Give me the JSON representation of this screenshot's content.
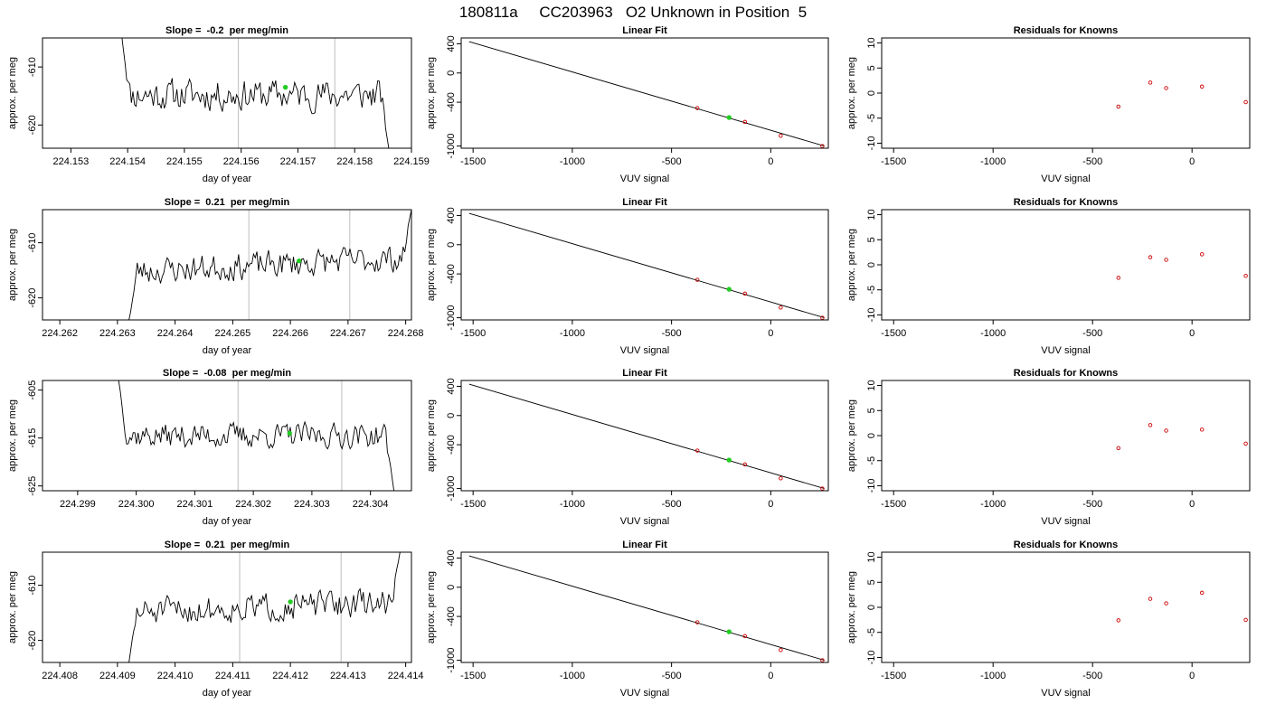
{
  "page_title": "180811a     CC203963   O2 Unknown in Position  5",
  "colors": {
    "trace": "#000000",
    "marker_green": "#22cc22",
    "known_points": "#cc0000",
    "vertical_lines": "#c8c8c8"
  },
  "chart_data": [
    {
      "type": "line",
      "panel": "time-series",
      "row": 0,
      "title": "Slope =  -0.2  per meg/min",
      "xlabel": "day of year",
      "ylabel": "approx. per meg",
      "x_ticks": [
        "224.153",
        "224.154",
        "224.155",
        "224.156",
        "224.157",
        "224.158",
        "224.159"
      ],
      "xlim": [
        224.1525,
        224.159
      ],
      "y_ticks": [
        -620,
        -610
      ],
      "ylim": [
        -624,
        -605
      ],
      "trace": {
        "x_start": 224.1539,
        "x_end": 224.1586,
        "mean": -614.8,
        "noise": 2.4,
        "start_value": -605,
        "end_value": -624,
        "seed": 11
      },
      "vlines": [
        224.15595,
        224.15765
      ],
      "marker": {
        "x": 224.15678,
        "y": -613.5
      },
      "grid": false
    },
    {
      "type": "line",
      "panel": "linear-fit",
      "row": 0,
      "title": "Linear Fit",
      "xlabel": "VUV signal",
      "ylabel": "approx. per meg",
      "x_ticks": [
        -1500,
        -1000,
        -500,
        0
      ],
      "xlim": [
        -1560,
        290
      ],
      "y_ticks": [
        400,
        0,
        -400,
        -1000
      ],
      "ylim": [
        -1030,
        480
      ],
      "line": [
        [
          -1520,
          430
        ],
        [
          270,
          -1000
        ]
      ],
      "points": [
        [
          -370,
          -480
        ],
        [
          -130,
          -670
        ],
        [
          50,
          -860
        ],
        [
          260,
          -1000
        ]
      ],
      "marker": {
        "x": -210,
        "y": -610
      }
    },
    {
      "type": "scatter",
      "panel": "residuals",
      "row": 0,
      "title": "Residuals for Knowns",
      "xlabel": "VUV signal",
      "ylabel": "approx. per meg",
      "x_ticks": [
        -1500,
        -1000,
        -500,
        0
      ],
      "xlim": [
        -1560,
        290
      ],
      "y_ticks": [
        10,
        5,
        0,
        -5,
        -10
      ],
      "ylim": [
        -11,
        11
      ],
      "points": [
        [
          -370,
          -2.7
        ],
        [
          -210,
          2.1
        ],
        [
          -130,
          1.0
        ],
        [
          50,
          1.3
        ],
        [
          270,
          -1.8
        ]
      ]
    },
    {
      "type": "line",
      "panel": "time-series",
      "row": 1,
      "title": "Slope =  0.21  per meg/min",
      "xlabel": "day of year",
      "ylabel": "approx. per meg",
      "x_ticks": [
        "224.262",
        "224.263",
        "224.264",
        "224.265",
        "224.266",
        "224.267",
        "224.268"
      ],
      "xlim": [
        224.2617,
        224.2681
      ],
      "y_ticks": [
        -620,
        -610
      ],
      "ylim": [
        -624,
        -604
      ],
      "trace": {
        "x_start": 224.2632,
        "x_end": 224.2681,
        "mean": -614.0,
        "noise": 2.2,
        "start_value": -624,
        "end_value": -604,
        "trend": 2.5,
        "seed": 23
      },
      "vlines": [
        224.26528,
        224.26703
      ],
      "marker": {
        "x": 224.26615,
        "y": -613.3
      },
      "grid": false
    },
    {
      "type": "line",
      "panel": "linear-fit",
      "row": 1,
      "title": "Linear Fit",
      "xlabel": "VUV signal",
      "ylabel": "approx. per meg",
      "x_ticks": [
        -1500,
        -1000,
        -500,
        0
      ],
      "xlim": [
        -1560,
        290
      ],
      "y_ticks": [
        400,
        0,
        -400,
        -1000
      ],
      "ylim": [
        -1030,
        480
      ],
      "line": [
        [
          -1520,
          430
        ],
        [
          270,
          -1000
        ]
      ],
      "points": [
        [
          -370,
          -480
        ],
        [
          -130,
          -670
        ],
        [
          50,
          -860
        ],
        [
          260,
          -1000
        ]
      ],
      "marker": {
        "x": -210,
        "y": -610
      }
    },
    {
      "type": "scatter",
      "panel": "residuals",
      "row": 1,
      "title": "Residuals for Knowns",
      "xlabel": "VUV signal",
      "ylabel": "approx. per meg",
      "x_ticks": [
        -1500,
        -1000,
        -500,
        0
      ],
      "xlim": [
        -1560,
        290
      ],
      "y_ticks": [
        10,
        5,
        0,
        -5,
        -10
      ],
      "ylim": [
        -11,
        11
      ],
      "points": [
        [
          -370,
          -2.6
        ],
        [
          -210,
          1.5
        ],
        [
          -130,
          1.0
        ],
        [
          50,
          2.1
        ],
        [
          270,
          -2.2
        ]
      ]
    },
    {
      "type": "line",
      "panel": "time-series",
      "row": 2,
      "title": "Slope =  -0.08  per meg/min",
      "xlabel": "day of year",
      "ylabel": "approx. per meg",
      "x_ticks": [
        "224.299",
        "224.300",
        "224.301",
        "224.302",
        "224.303",
        "224.304"
      ],
      "xlim": [
        224.2984,
        224.3047
      ],
      "y_ticks": [
        -625,
        -615,
        -605
      ],
      "ylim": [
        -626,
        -603
      ],
      "trace": {
        "x_start": 224.2997,
        "x_end": 224.3044,
        "mean": -614.5,
        "noise": 2.3,
        "start_value": -603,
        "end_value": -626,
        "seed": 37
      },
      "vlines": [
        224.30174,
        224.30351
      ],
      "marker": {
        "x": 224.30262,
        "y": -614.0
      },
      "grid": false
    },
    {
      "type": "line",
      "panel": "linear-fit",
      "row": 2,
      "title": "Linear Fit",
      "xlabel": "VUV signal",
      "ylabel": "approx. per meg",
      "x_ticks": [
        -1500,
        -1000,
        -500,
        0
      ],
      "xlim": [
        -1560,
        290
      ],
      "y_ticks": [
        400,
        0,
        -400,
        -1000
      ],
      "ylim": [
        -1030,
        480
      ],
      "line": [
        [
          -1520,
          430
        ],
        [
          270,
          -1000
        ]
      ],
      "points": [
        [
          -370,
          -480
        ],
        [
          -130,
          -670
        ],
        [
          50,
          -860
        ],
        [
          260,
          -1000
        ]
      ],
      "marker": {
        "x": -210,
        "y": -610
      }
    },
    {
      "type": "scatter",
      "panel": "residuals",
      "row": 2,
      "title": "Residuals for Knowns",
      "xlabel": "VUV signal",
      "ylabel": "approx. per meg",
      "x_ticks": [
        -1500,
        -1000,
        -500,
        0
      ],
      "xlim": [
        -1560,
        290
      ],
      "y_ticks": [
        10,
        5,
        0,
        -5,
        -10
      ],
      "ylim": [
        -11,
        11
      ],
      "points": [
        [
          -370,
          -2.5
        ],
        [
          -210,
          2.1
        ],
        [
          -130,
          1.0
        ],
        [
          50,
          1.2
        ],
        [
          270,
          -1.6
        ]
      ]
    },
    {
      "type": "line",
      "panel": "time-series",
      "row": 3,
      "title": "Slope =  0.21  per meg/min",
      "xlabel": "day of year",
      "ylabel": "approx. per meg",
      "x_ticks": [
        "224.408",
        "224.409",
        "224.410",
        "224.411",
        "224.412",
        "224.413",
        "224.414"
      ],
      "xlim": [
        224.4077,
        224.4141
      ],
      "y_ticks": [
        -620,
        -610
      ],
      "ylim": [
        -624,
        -604
      ],
      "trace": {
        "x_start": 224.4092,
        "x_end": 224.4139,
        "mean": -614.0,
        "noise": 2.2,
        "start_value": -624,
        "end_value": -604,
        "trend": 2.0,
        "seed": 51
      },
      "vlines": [
        224.41112,
        224.41288
      ],
      "marker": {
        "x": 224.412,
        "y": -613.0
      },
      "grid": false
    },
    {
      "type": "line",
      "panel": "linear-fit",
      "row": 3,
      "title": "Linear Fit",
      "xlabel": "VUV signal",
      "ylabel": "approx. per meg",
      "x_ticks": [
        -1500,
        -1000,
        -500,
        0
      ],
      "xlim": [
        -1560,
        290
      ],
      "y_ticks": [
        400,
        0,
        -400,
        -1000
      ],
      "ylim": [
        -1030,
        480
      ],
      "line": [
        [
          -1520,
          430
        ],
        [
          270,
          -1000
        ]
      ],
      "points": [
        [
          -370,
          -480
        ],
        [
          -130,
          -670
        ],
        [
          50,
          -860
        ],
        [
          260,
          -1000
        ]
      ],
      "marker": {
        "x": -210,
        "y": -610
      }
    },
    {
      "type": "scatter",
      "panel": "residuals",
      "row": 3,
      "title": "Residuals for Knowns",
      "xlabel": "VUV signal",
      "ylabel": "approx. per meg",
      "x_ticks": [
        -1500,
        -1000,
        -500,
        0
      ],
      "xlim": [
        -1560,
        290
      ],
      "y_ticks": [
        10,
        5,
        0,
        -5,
        -10
      ],
      "ylim": [
        -11,
        11
      ],
      "points": [
        [
          -370,
          -2.6
        ],
        [
          -210,
          1.7
        ],
        [
          -130,
          0.8
        ],
        [
          50,
          2.9
        ],
        [
          270,
          -2.5
        ]
      ]
    }
  ]
}
